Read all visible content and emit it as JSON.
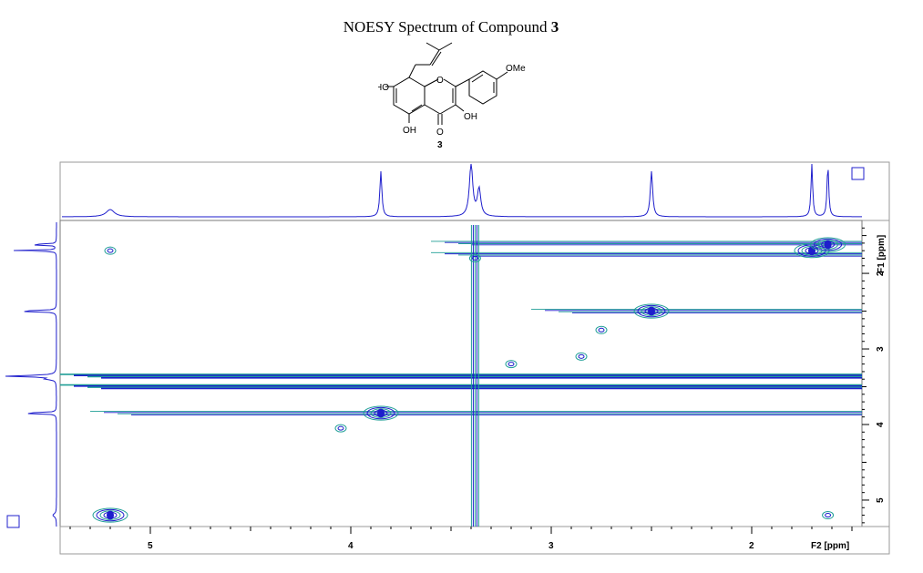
{
  "title": {
    "prefix": "NOESY Spectrum of Compound ",
    "number": "3"
  },
  "molecule": {
    "compound_label": "3",
    "substituents": [
      "HO",
      "OH",
      "OH",
      "O",
      "O",
      "OMe"
    ]
  },
  "colors": {
    "positive": "#1e1ecc",
    "teal": "#1f9e96",
    "frame": "#7a7a7a"
  },
  "chart_data": {
    "type": "heatmap",
    "subtype": "2D NOESY contour plot",
    "title": "",
    "xlabel": "F2 [ppm]",
    "ylabel": "F1 [ppm]",
    "x_range": [
      5.45,
      1.45
    ],
    "y_range": [
      1.3,
      5.35
    ],
    "x_ticks": [
      5,
      4,
      3,
      2
    ],
    "y_ticks": [
      2,
      3,
      4,
      5
    ],
    "projection_peaks_ppm": [
      5.2,
      3.85,
      3.4,
      3.36,
      2.5,
      1.7,
      1.62
    ],
    "diagonal_peaks": [
      {
        "f2": 5.2,
        "f1": 5.2
      },
      {
        "f2": 3.85,
        "f1": 3.85
      },
      {
        "f2": 2.5,
        "f1": 2.5
      },
      {
        "f2": 1.7,
        "f1": 1.7
      },
      {
        "f2": 1.62,
        "f1": 1.62
      }
    ],
    "cross_peaks": [
      {
        "f2": 5.2,
        "f1": 1.7
      },
      {
        "f2": 1.62,
        "f1": 5.2
      },
      {
        "f2": 3.38,
        "f1": 1.8
      },
      {
        "f2": 4.05,
        "f1": 4.05
      },
      {
        "f2": 3.2,
        "f1": 3.2
      },
      {
        "f2": 2.75,
        "f1": 2.75
      },
      {
        "f2": 2.85,
        "f1": 3.1
      }
    ],
    "horizontal_ridges_f1": [
      1.6,
      1.75,
      2.5,
      3.36,
      3.5,
      3.85
    ],
    "vertical_ridge_f2": 3.38
  }
}
